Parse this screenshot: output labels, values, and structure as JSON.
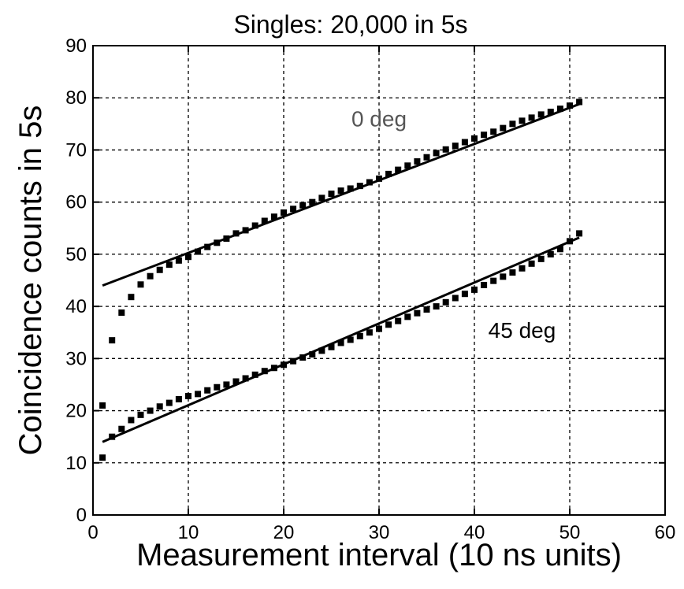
{
  "chart_data": {
    "type": "scatter",
    "title": "Singles: 20,000 in 5s",
    "xlabel": "Measurement interval (10 ns units)",
    "ylabel": "Coincidence counts in 5s",
    "xlim": [
      0,
      60
    ],
    "ylim": [
      0,
      90
    ],
    "xticks": [
      0,
      10,
      20,
      30,
      40,
      50,
      60
    ],
    "yticks": [
      0,
      10,
      20,
      30,
      40,
      50,
      60,
      70,
      80,
      90
    ],
    "grid": true,
    "series": [
      {
        "name": "0 deg",
        "x": [
          1,
          2,
          3,
          4,
          5,
          6,
          7,
          8,
          9,
          10,
          11,
          12,
          13,
          14,
          15,
          16,
          17,
          18,
          19,
          20,
          21,
          22,
          23,
          24,
          25,
          26,
          27,
          28,
          29,
          30,
          31,
          32,
          33,
          34,
          35,
          36,
          37,
          38,
          39,
          40,
          41,
          42,
          43,
          44,
          45,
          46,
          47,
          48,
          49,
          50,
          51
        ],
        "y": [
          21,
          33.5,
          38.8,
          41.8,
          44.2,
          45.8,
          47,
          48,
          48.8,
          49.5,
          50.5,
          51.4,
          52.2,
          53,
          54,
          54.6,
          55.5,
          56.4,
          57.2,
          58,
          58.7,
          59.4,
          60,
          60.8,
          61.6,
          62.2,
          62.6,
          63.1,
          63.8,
          64.5,
          65.4,
          66.2,
          67,
          67.8,
          68.6,
          69.4,
          70.1,
          70.8,
          71.5,
          72.2,
          72.9,
          73.5,
          74.2,
          75,
          75.6,
          76.2,
          76.8,
          77.3,
          77.9,
          78.5,
          79.2
        ],
        "fit": {
          "x": [
            1,
            51
          ],
          "y": [
            44,
            78.8
          ]
        }
      },
      {
        "name": "45 deg",
        "x": [
          1,
          2,
          3,
          4,
          5,
          6,
          7,
          8,
          9,
          10,
          11,
          12,
          13,
          14,
          15,
          16,
          17,
          18,
          19,
          20,
          21,
          22,
          23,
          24,
          25,
          26,
          27,
          28,
          29,
          30,
          31,
          32,
          33,
          34,
          35,
          36,
          37,
          38,
          39,
          40,
          41,
          42,
          43,
          44,
          45,
          46,
          47,
          48,
          49,
          50,
          51
        ],
        "y": [
          11,
          15,
          16.5,
          18.2,
          19.2,
          20,
          20.8,
          21.5,
          22.2,
          22.8,
          23.2,
          23.9,
          24.5,
          25,
          25.6,
          26.2,
          26.9,
          27.6,
          28.2,
          28.8,
          29.5,
          30.2,
          30.8,
          31.5,
          32.2,
          33,
          33.6,
          34.3,
          35,
          35.7,
          36.5,
          37.2,
          38,
          38.7,
          39.4,
          40,
          40.8,
          41.6,
          42.4,
          43.2,
          44.1,
          44.9,
          45.7,
          46.5,
          47.3,
          48.2,
          49.1,
          50,
          51,
          52.5,
          54
        ],
        "fit": {
          "x": [
            1,
            51
          ],
          "y": [
            14,
            53.2
          ]
        }
      }
    ],
    "annotations": [
      {
        "text": "0 deg",
        "x": 30,
        "y": 74.5,
        "color": "#555555"
      },
      {
        "text": "45 deg",
        "x": 45,
        "y": 34,
        "color": "#000000"
      }
    ]
  }
}
